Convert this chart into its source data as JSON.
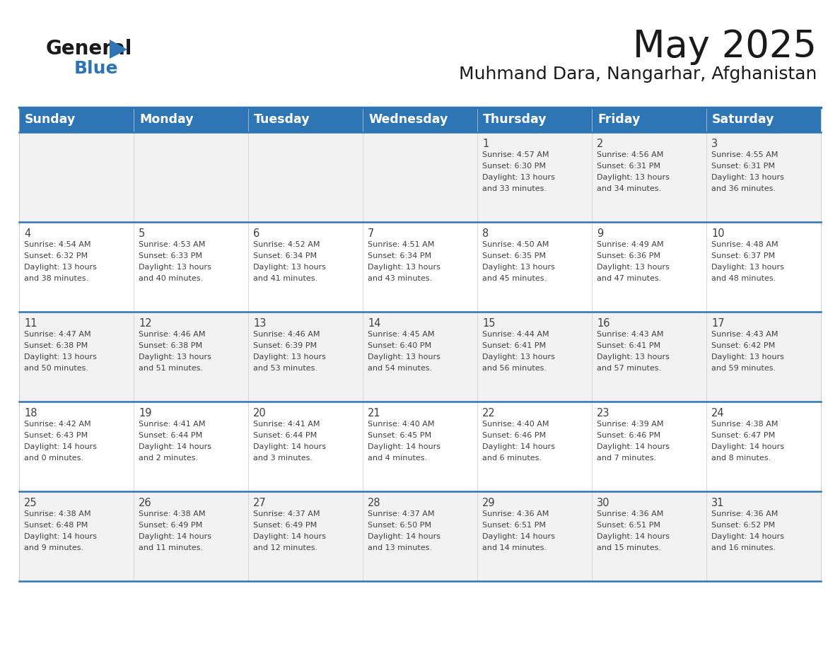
{
  "title": "May 2025",
  "subtitle": "Muhmand Dara, Nangarhar, Afghanistan",
  "header_color": "#2E75B6",
  "header_text_color": "#FFFFFF",
  "days_of_week": [
    "Sunday",
    "Monday",
    "Tuesday",
    "Wednesday",
    "Thursday",
    "Friday",
    "Saturday"
  ],
  "border_color": "#2E75B6",
  "row_sep_color": "#4472A8",
  "text_color": "#404040",
  "calendar_data": [
    [
      null,
      null,
      null,
      null,
      {
        "day": 1,
        "sunrise": "4:57 AM",
        "sunset": "6:30 PM",
        "daylight_hours": 13,
        "daylight_minutes": 33
      },
      {
        "day": 2,
        "sunrise": "4:56 AM",
        "sunset": "6:31 PM",
        "daylight_hours": 13,
        "daylight_minutes": 34
      },
      {
        "day": 3,
        "sunrise": "4:55 AM",
        "sunset": "6:31 PM",
        "daylight_hours": 13,
        "daylight_minutes": 36
      }
    ],
    [
      {
        "day": 4,
        "sunrise": "4:54 AM",
        "sunset": "6:32 PM",
        "daylight_hours": 13,
        "daylight_minutes": 38
      },
      {
        "day": 5,
        "sunrise": "4:53 AM",
        "sunset": "6:33 PM",
        "daylight_hours": 13,
        "daylight_minutes": 40
      },
      {
        "day": 6,
        "sunrise": "4:52 AM",
        "sunset": "6:34 PM",
        "daylight_hours": 13,
        "daylight_minutes": 41
      },
      {
        "day": 7,
        "sunrise": "4:51 AM",
        "sunset": "6:34 PM",
        "daylight_hours": 13,
        "daylight_minutes": 43
      },
      {
        "day": 8,
        "sunrise": "4:50 AM",
        "sunset": "6:35 PM",
        "daylight_hours": 13,
        "daylight_minutes": 45
      },
      {
        "day": 9,
        "sunrise": "4:49 AM",
        "sunset": "6:36 PM",
        "daylight_hours": 13,
        "daylight_minutes": 47
      },
      {
        "day": 10,
        "sunrise": "4:48 AM",
        "sunset": "6:37 PM",
        "daylight_hours": 13,
        "daylight_minutes": 48
      }
    ],
    [
      {
        "day": 11,
        "sunrise": "4:47 AM",
        "sunset": "6:38 PM",
        "daylight_hours": 13,
        "daylight_minutes": 50
      },
      {
        "day": 12,
        "sunrise": "4:46 AM",
        "sunset": "6:38 PM",
        "daylight_hours": 13,
        "daylight_minutes": 51
      },
      {
        "day": 13,
        "sunrise": "4:46 AM",
        "sunset": "6:39 PM",
        "daylight_hours": 13,
        "daylight_minutes": 53
      },
      {
        "day": 14,
        "sunrise": "4:45 AM",
        "sunset": "6:40 PM",
        "daylight_hours": 13,
        "daylight_minutes": 54
      },
      {
        "day": 15,
        "sunrise": "4:44 AM",
        "sunset": "6:41 PM",
        "daylight_hours": 13,
        "daylight_minutes": 56
      },
      {
        "day": 16,
        "sunrise": "4:43 AM",
        "sunset": "6:41 PM",
        "daylight_hours": 13,
        "daylight_minutes": 57
      },
      {
        "day": 17,
        "sunrise": "4:43 AM",
        "sunset": "6:42 PM",
        "daylight_hours": 13,
        "daylight_minutes": 59
      }
    ],
    [
      {
        "day": 18,
        "sunrise": "4:42 AM",
        "sunset": "6:43 PM",
        "daylight_hours": 14,
        "daylight_minutes": 0
      },
      {
        "day": 19,
        "sunrise": "4:41 AM",
        "sunset": "6:44 PM",
        "daylight_hours": 14,
        "daylight_minutes": 2
      },
      {
        "day": 20,
        "sunrise": "4:41 AM",
        "sunset": "6:44 PM",
        "daylight_hours": 14,
        "daylight_minutes": 3
      },
      {
        "day": 21,
        "sunrise": "4:40 AM",
        "sunset": "6:45 PM",
        "daylight_hours": 14,
        "daylight_minutes": 4
      },
      {
        "day": 22,
        "sunrise": "4:40 AM",
        "sunset": "6:46 PM",
        "daylight_hours": 14,
        "daylight_minutes": 6
      },
      {
        "day": 23,
        "sunrise": "4:39 AM",
        "sunset": "6:46 PM",
        "daylight_hours": 14,
        "daylight_minutes": 7
      },
      {
        "day": 24,
        "sunrise": "4:38 AM",
        "sunset": "6:47 PM",
        "daylight_hours": 14,
        "daylight_minutes": 8
      }
    ],
    [
      {
        "day": 25,
        "sunrise": "4:38 AM",
        "sunset": "6:48 PM",
        "daylight_hours": 14,
        "daylight_minutes": 9
      },
      {
        "day": 26,
        "sunrise": "4:38 AM",
        "sunset": "6:49 PM",
        "daylight_hours": 14,
        "daylight_minutes": 11
      },
      {
        "day": 27,
        "sunrise": "4:37 AM",
        "sunset": "6:49 PM",
        "daylight_hours": 14,
        "daylight_minutes": 12
      },
      {
        "day": 28,
        "sunrise": "4:37 AM",
        "sunset": "6:50 PM",
        "daylight_hours": 14,
        "daylight_minutes": 13
      },
      {
        "day": 29,
        "sunrise": "4:36 AM",
        "sunset": "6:51 PM",
        "daylight_hours": 14,
        "daylight_minutes": 14
      },
      {
        "day": 30,
        "sunrise": "4:36 AM",
        "sunset": "6:51 PM",
        "daylight_hours": 14,
        "daylight_minutes": 15
      },
      {
        "day": 31,
        "sunrise": "4:36 AM",
        "sunset": "6:52 PM",
        "daylight_hours": 14,
        "daylight_minutes": 16
      }
    ]
  ],
  "logo_text_color": "#1a1a1a",
  "logo_blue_color": "#2E75B6",
  "cell_font_size": 8.0,
  "day_num_font_size": 10.5,
  "header_font_size": 12.5,
  "title_font_size": 38,
  "subtitle_font_size": 18
}
